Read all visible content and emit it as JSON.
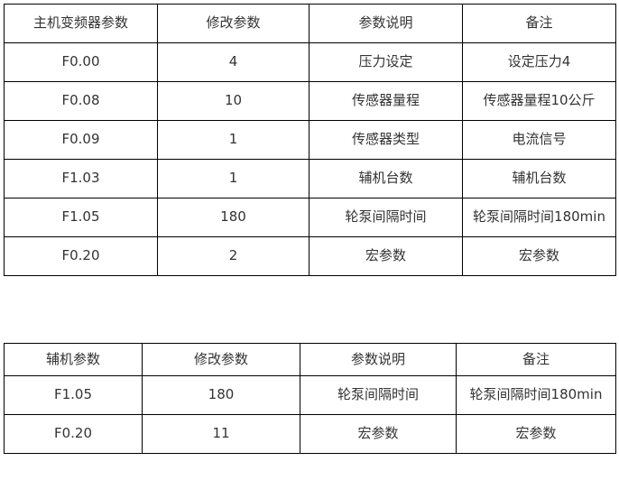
{
  "table1": {
    "headers": [
      "主机变频器参数",
      "修改参数",
      "参数说明",
      "备注"
    ],
    "rows": [
      [
        "F0.00",
        "4",
        "压力设定",
        "设定压力4"
      ],
      [
        "F0.08",
        "10",
        "传感器量程",
        "传感器量程10公斤"
      ],
      [
        "F0.09",
        "1",
        "传感器类型",
        "电流信号"
      ],
      [
        "F1.03",
        "1",
        "辅机台数",
        "辅机台数"
      ],
      [
        "F1.05",
        "180",
        "轮泵间隔时间",
        "轮泵间隔时间180min"
      ],
      [
        "F0.20",
        "2",
        "宏参数",
        "宏参数"
      ]
    ]
  },
  "table2": {
    "headers": [
      "辅机参数",
      "修改参数",
      "参数说明",
      "备注"
    ],
    "rows": [
      [
        "F1.05",
        "180",
        "轮泵间隔时间",
        "轮泵间隔时间180min"
      ],
      [
        "F0.20",
        "11",
        "宏参数",
        "宏参数"
      ]
    ]
  }
}
